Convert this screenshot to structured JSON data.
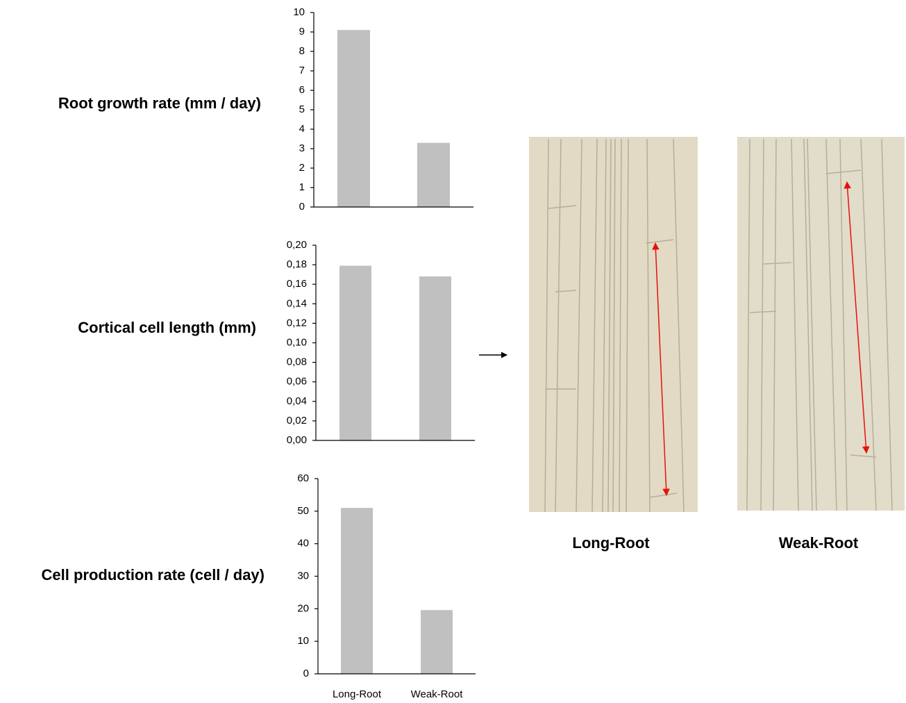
{
  "chart_data": [
    {
      "type": "bar",
      "title": "Root growth rate (mm / day)",
      "categories": [
        null,
        null
      ],
      "values": [
        9.1,
        3.3
      ],
      "color": "#c0c0c0",
      "ylim": [
        0,
        10
      ],
      "yticks": [
        0,
        1,
        2,
        3,
        4,
        5,
        6,
        7,
        8,
        9,
        10
      ]
    },
    {
      "type": "bar",
      "title": "Cortical cell length (mm)",
      "categories": [
        null,
        null
      ],
      "values": [
        0.179,
        0.168
      ],
      "color": "#c0c0c0",
      "ylim": [
        0,
        0.2
      ],
      "yticks": [
        {
          "value": 0,
          "label": "0,00"
        },
        {
          "value": 0.02,
          "label": "0,02"
        },
        {
          "value": 0.04,
          "label": "0,04"
        },
        {
          "value": 0.06,
          "label": "0,06"
        },
        {
          "value": 0.08,
          "label": "0,08"
        },
        {
          "value": 0.1,
          "label": "0,10"
        },
        {
          "value": 0.12,
          "label": "0,12"
        },
        {
          "value": 0.14,
          "label": "0,14"
        },
        {
          "value": 0.16,
          "label": "0,16"
        },
        {
          "value": 0.18,
          "label": "0,18"
        },
        {
          "value": 0.2,
          "label": "0,20"
        }
      ]
    },
    {
      "type": "bar",
      "title": "Cell production rate (cell / day)",
      "categories": [
        "Long-Root",
        "Weak-Root"
      ],
      "values": [
        51,
        19.6
      ],
      "color": "#c0c0c0",
      "ylim": [
        0,
        60
      ],
      "yticks": [
        0,
        10,
        20,
        30,
        40,
        50,
        60
      ]
    }
  ],
  "images": [
    {
      "label": "Long-Root"
    },
    {
      "label": "Weak-Root"
    }
  ]
}
